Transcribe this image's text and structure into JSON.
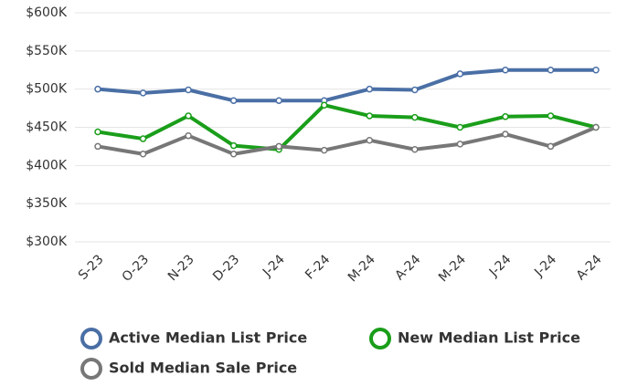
{
  "chart_data": {
    "type": "line",
    "categories": [
      "S-23",
      "O-23",
      "N-23",
      "D-23",
      "J-24",
      "F-24",
      "M-24",
      "A-24",
      "M-24",
      "J-24",
      "J-24",
      "A-24"
    ],
    "series": [
      {
        "name": "Active Median List Price",
        "color": "#4a6fa5",
        "values": [
          500000,
          495000,
          499000,
          485000,
          485000,
          485000,
          500000,
          499000,
          520000,
          525000,
          525000,
          525000
        ]
      },
      {
        "name": "New Median List Price",
        "color": "#1a9e1a",
        "values": [
          444000,
          435000,
          465000,
          426000,
          421000,
          479000,
          465000,
          463000,
          450000,
          464000,
          465000,
          450000
        ]
      },
      {
        "name": "Sold Median Sale Price",
        "color": "#777777",
        "values": [
          425000,
          415000,
          439000,
          415000,
          425000,
          420000,
          433000,
          421000,
          428000,
          441000,
          425000,
          450000
        ]
      }
    ],
    "ylim": [
      300000,
      600000
    ],
    "yticks": [
      {
        "value": 300000,
        "label": "$300K"
      },
      {
        "value": 350000,
        "label": "$350K"
      },
      {
        "value": 400000,
        "label": "$400K"
      },
      {
        "value": 450000,
        "label": "$450K"
      },
      {
        "value": 500000,
        "label": "$500K"
      },
      {
        "value": 550000,
        "label": "$550K"
      },
      {
        "value": 600000,
        "label": "$600K"
      }
    ],
    "grid": true
  }
}
